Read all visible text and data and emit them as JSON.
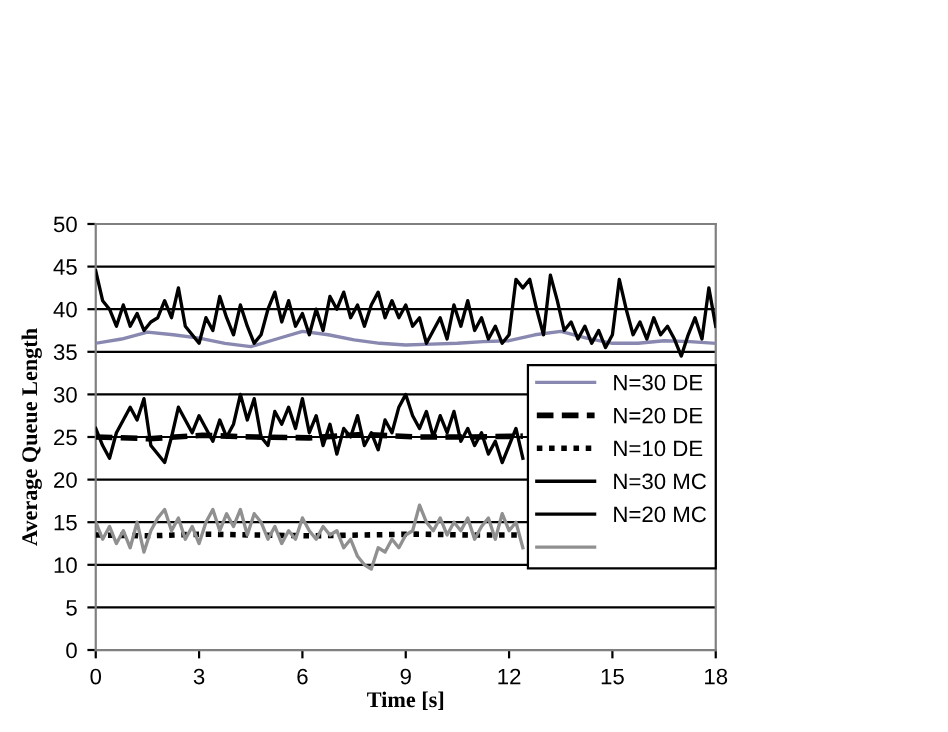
{
  "chart_data": {
    "type": "line",
    "xlabel": "Time [s]",
    "ylabel": "Average Queue Length",
    "xlim": [
      0,
      18
    ],
    "xticks": [
      0,
      3,
      6,
      9,
      12,
      15,
      18
    ],
    "ylim": [
      0,
      50
    ],
    "yticks": [
      0,
      5,
      10,
      15,
      20,
      25,
      30,
      35,
      40,
      45,
      50
    ],
    "grid": "y",
    "legend": "right",
    "marker": "none",
    "series": [
      {
        "name": "N=30 DE",
        "color": "#8888b0",
        "line_style": "solid",
        "x": [
          0,
          0.75,
          1.5,
          2.25,
          3,
          3.75,
          4.5,
          5.25,
          6,
          6.75,
          7.5,
          8.25,
          9,
          9.75,
          10.5,
          11.25,
          12,
          12.75,
          13.5,
          14.25,
          15,
          15.75,
          16.5,
          17.25,
          18
        ],
        "values": [
          36,
          36.5,
          37.3,
          37,
          36.6,
          36,
          35.6,
          36.5,
          37.4,
          37,
          36.4,
          36,
          35.8,
          35.9,
          36,
          36.2,
          36.3,
          37,
          37.4,
          36.6,
          36,
          36,
          36.3,
          36.2,
          36
        ]
      },
      {
        "name": "N=20 DE",
        "color": "#000000",
        "line_style": "dashed",
        "x": [
          0,
          1.55,
          3.1,
          4.65,
          6.2,
          7.75,
          9.3,
          10.85,
          12.4
        ],
        "values": [
          25,
          24.8,
          25.2,
          25,
          24.9,
          25.3,
          25,
          25,
          25.1
        ]
      },
      {
        "name": "N=10 DE",
        "color": "#000000",
        "line_style": "dotted",
        "x": [
          0,
          1.55,
          3.1,
          4.65,
          6.2,
          7.75,
          9.3,
          10.85,
          12.4
        ],
        "values": [
          13.5,
          13.4,
          13.6,
          13.5,
          13.4,
          13.5,
          13.6,
          13.5,
          13.5
        ]
      },
      {
        "name": "N=30 MC",
        "color": "#000000",
        "line_style": "solid",
        "x": [
          0,
          0.2,
          0.4,
          0.6,
          0.8,
          1.0,
          1.2,
          1.4,
          1.6,
          1.8,
          2.0,
          2.2,
          2.4,
          2.6,
          2.8,
          3.0,
          3.2,
          3.4,
          3.6,
          3.8,
          4.0,
          4.2,
          4.4,
          4.6,
          4.8,
          5.0,
          5.2,
          5.4,
          5.6,
          5.8,
          6.0,
          6.2,
          6.4,
          6.6,
          6.8,
          7.0,
          7.2,
          7.4,
          7.6,
          7.8,
          8.0,
          8.2,
          8.4,
          8.6,
          8.8,
          9.0,
          9.2,
          9.4,
          9.6,
          9.8,
          10.0,
          10.2,
          10.4,
          10.6,
          10.8,
          11.0,
          11.2,
          11.4,
          11.6,
          11.8,
          12.0,
          12.2,
          12.4,
          12.6,
          12.8,
          13.0,
          13.2,
          13.4,
          13.6,
          13.8,
          14.0,
          14.2,
          14.4,
          14.6,
          14.8,
          15.0,
          15.2,
          15.4,
          15.6,
          15.8,
          16.0,
          16.2,
          16.4,
          16.6,
          16.8,
          17.0,
          17.2,
          17.4,
          17.6,
          17.8,
          18.0
        ],
        "values": [
          44.5,
          41,
          40,
          38,
          40.5,
          38,
          39.5,
          37.5,
          38.5,
          39,
          41,
          39,
          42.5,
          38,
          37,
          36,
          39,
          37.5,
          41.5,
          39,
          37,
          40.5,
          38,
          36,
          37,
          40,
          42,
          38.5,
          41,
          38,
          39.5,
          37,
          40,
          37.5,
          41.5,
          40,
          42,
          39,
          40.5,
          38,
          40.5,
          42,
          39,
          41,
          39,
          40.5,
          38,
          39,
          36,
          37.5,
          39,
          36.5,
          40.5,
          38,
          41,
          37.5,
          39,
          36.5,
          38,
          36,
          37,
          43.5,
          42.5,
          43.5,
          40,
          37,
          44,
          41,
          37.5,
          38.5,
          36.5,
          38,
          36,
          37.5,
          35.5,
          37,
          43.5,
          40,
          37,
          38.5,
          36.5,
          39,
          37,
          38,
          36.5,
          34.5,
          37,
          39,
          36.5,
          42.5,
          38
        ]
      },
      {
        "name": "N=20 MC",
        "color": "#000000",
        "line_style": "solid",
        "x": [
          0,
          0.2,
          0.4,
          0.6,
          0.8,
          1.0,
          1.2,
          1.4,
          1.6,
          1.8,
          2.0,
          2.2,
          2.4,
          2.6,
          2.8,
          3.0,
          3.2,
          3.4,
          3.6,
          3.8,
          4.0,
          4.2,
          4.4,
          4.6,
          4.8,
          5.0,
          5.2,
          5.4,
          5.6,
          5.8,
          6.0,
          6.2,
          6.4,
          6.6,
          6.8,
          7.0,
          7.2,
          7.4,
          7.6,
          7.8,
          8.0,
          8.2,
          8.4,
          8.6,
          8.8,
          9.0,
          9.2,
          9.4,
          9.6,
          9.8,
          10.0,
          10.2,
          10.4,
          10.6,
          10.8,
          11.0,
          11.2,
          11.4,
          11.6,
          11.8,
          12.0,
          12.2,
          12.4
        ],
        "values": [
          26,
          24,
          22.5,
          25.5,
          27,
          28.5,
          27,
          29.5,
          24,
          23,
          22,
          25,
          28.5,
          27,
          25.5,
          27.5,
          26,
          24.5,
          27,
          25,
          26.5,
          30,
          27,
          29.5,
          25,
          24,
          28,
          26.5,
          28.5,
          26,
          29.5,
          25.5,
          27.5,
          24,
          26.5,
          23,
          26,
          25,
          27.5,
          24,
          25.5,
          23.5,
          27,
          25.5,
          28.5,
          30,
          27.5,
          26,
          28,
          25,
          27.5,
          25.5,
          28,
          24.5,
          26,
          24,
          25.5,
          23,
          24.5,
          22,
          24,
          26,
          22.5
        ]
      },
      {
        "color": "#909090",
        "line_style": "solid",
        "x": [
          0,
          0.2,
          0.4,
          0.6,
          0.8,
          1.0,
          1.2,
          1.4,
          1.6,
          1.8,
          2.0,
          2.2,
          2.4,
          2.6,
          2.8,
          3.0,
          3.2,
          3.4,
          3.6,
          3.8,
          4.0,
          4.2,
          4.4,
          4.6,
          4.8,
          5.0,
          5.2,
          5.4,
          5.6,
          5.8,
          6.0,
          6.2,
          6.4,
          6.6,
          6.8,
          7.0,
          7.2,
          7.4,
          7.6,
          7.8,
          8.0,
          8.2,
          8.4,
          8.6,
          8.8,
          9.0,
          9.2,
          9.4,
          9.6,
          9.8,
          10.0,
          10.2,
          10.4,
          10.6,
          10.8,
          11.0,
          11.2,
          11.4,
          11.6,
          11.8,
          12.0,
          12.2,
          12.4
        ],
        "values": [
          15,
          13,
          14.5,
          12.5,
          14,
          12,
          15,
          11.5,
          14,
          15.5,
          16.5,
          14,
          15.5,
          13,
          14.5,
          12.5,
          15,
          16.5,
          14,
          16,
          14.5,
          16.5,
          13.5,
          16,
          15,
          13,
          14.5,
          12.5,
          14,
          13,
          15.5,
          14,
          13,
          14.5,
          13.5,
          14,
          12,
          13,
          11,
          10,
          9.5,
          12,
          11.5,
          13,
          12,
          13.5,
          14,
          17,
          15,
          14,
          15.5,
          13.5,
          15,
          14,
          15.5,
          13,
          14.5,
          15.5,
          13,
          16,
          14,
          15,
          12
        ]
      }
    ]
  }
}
